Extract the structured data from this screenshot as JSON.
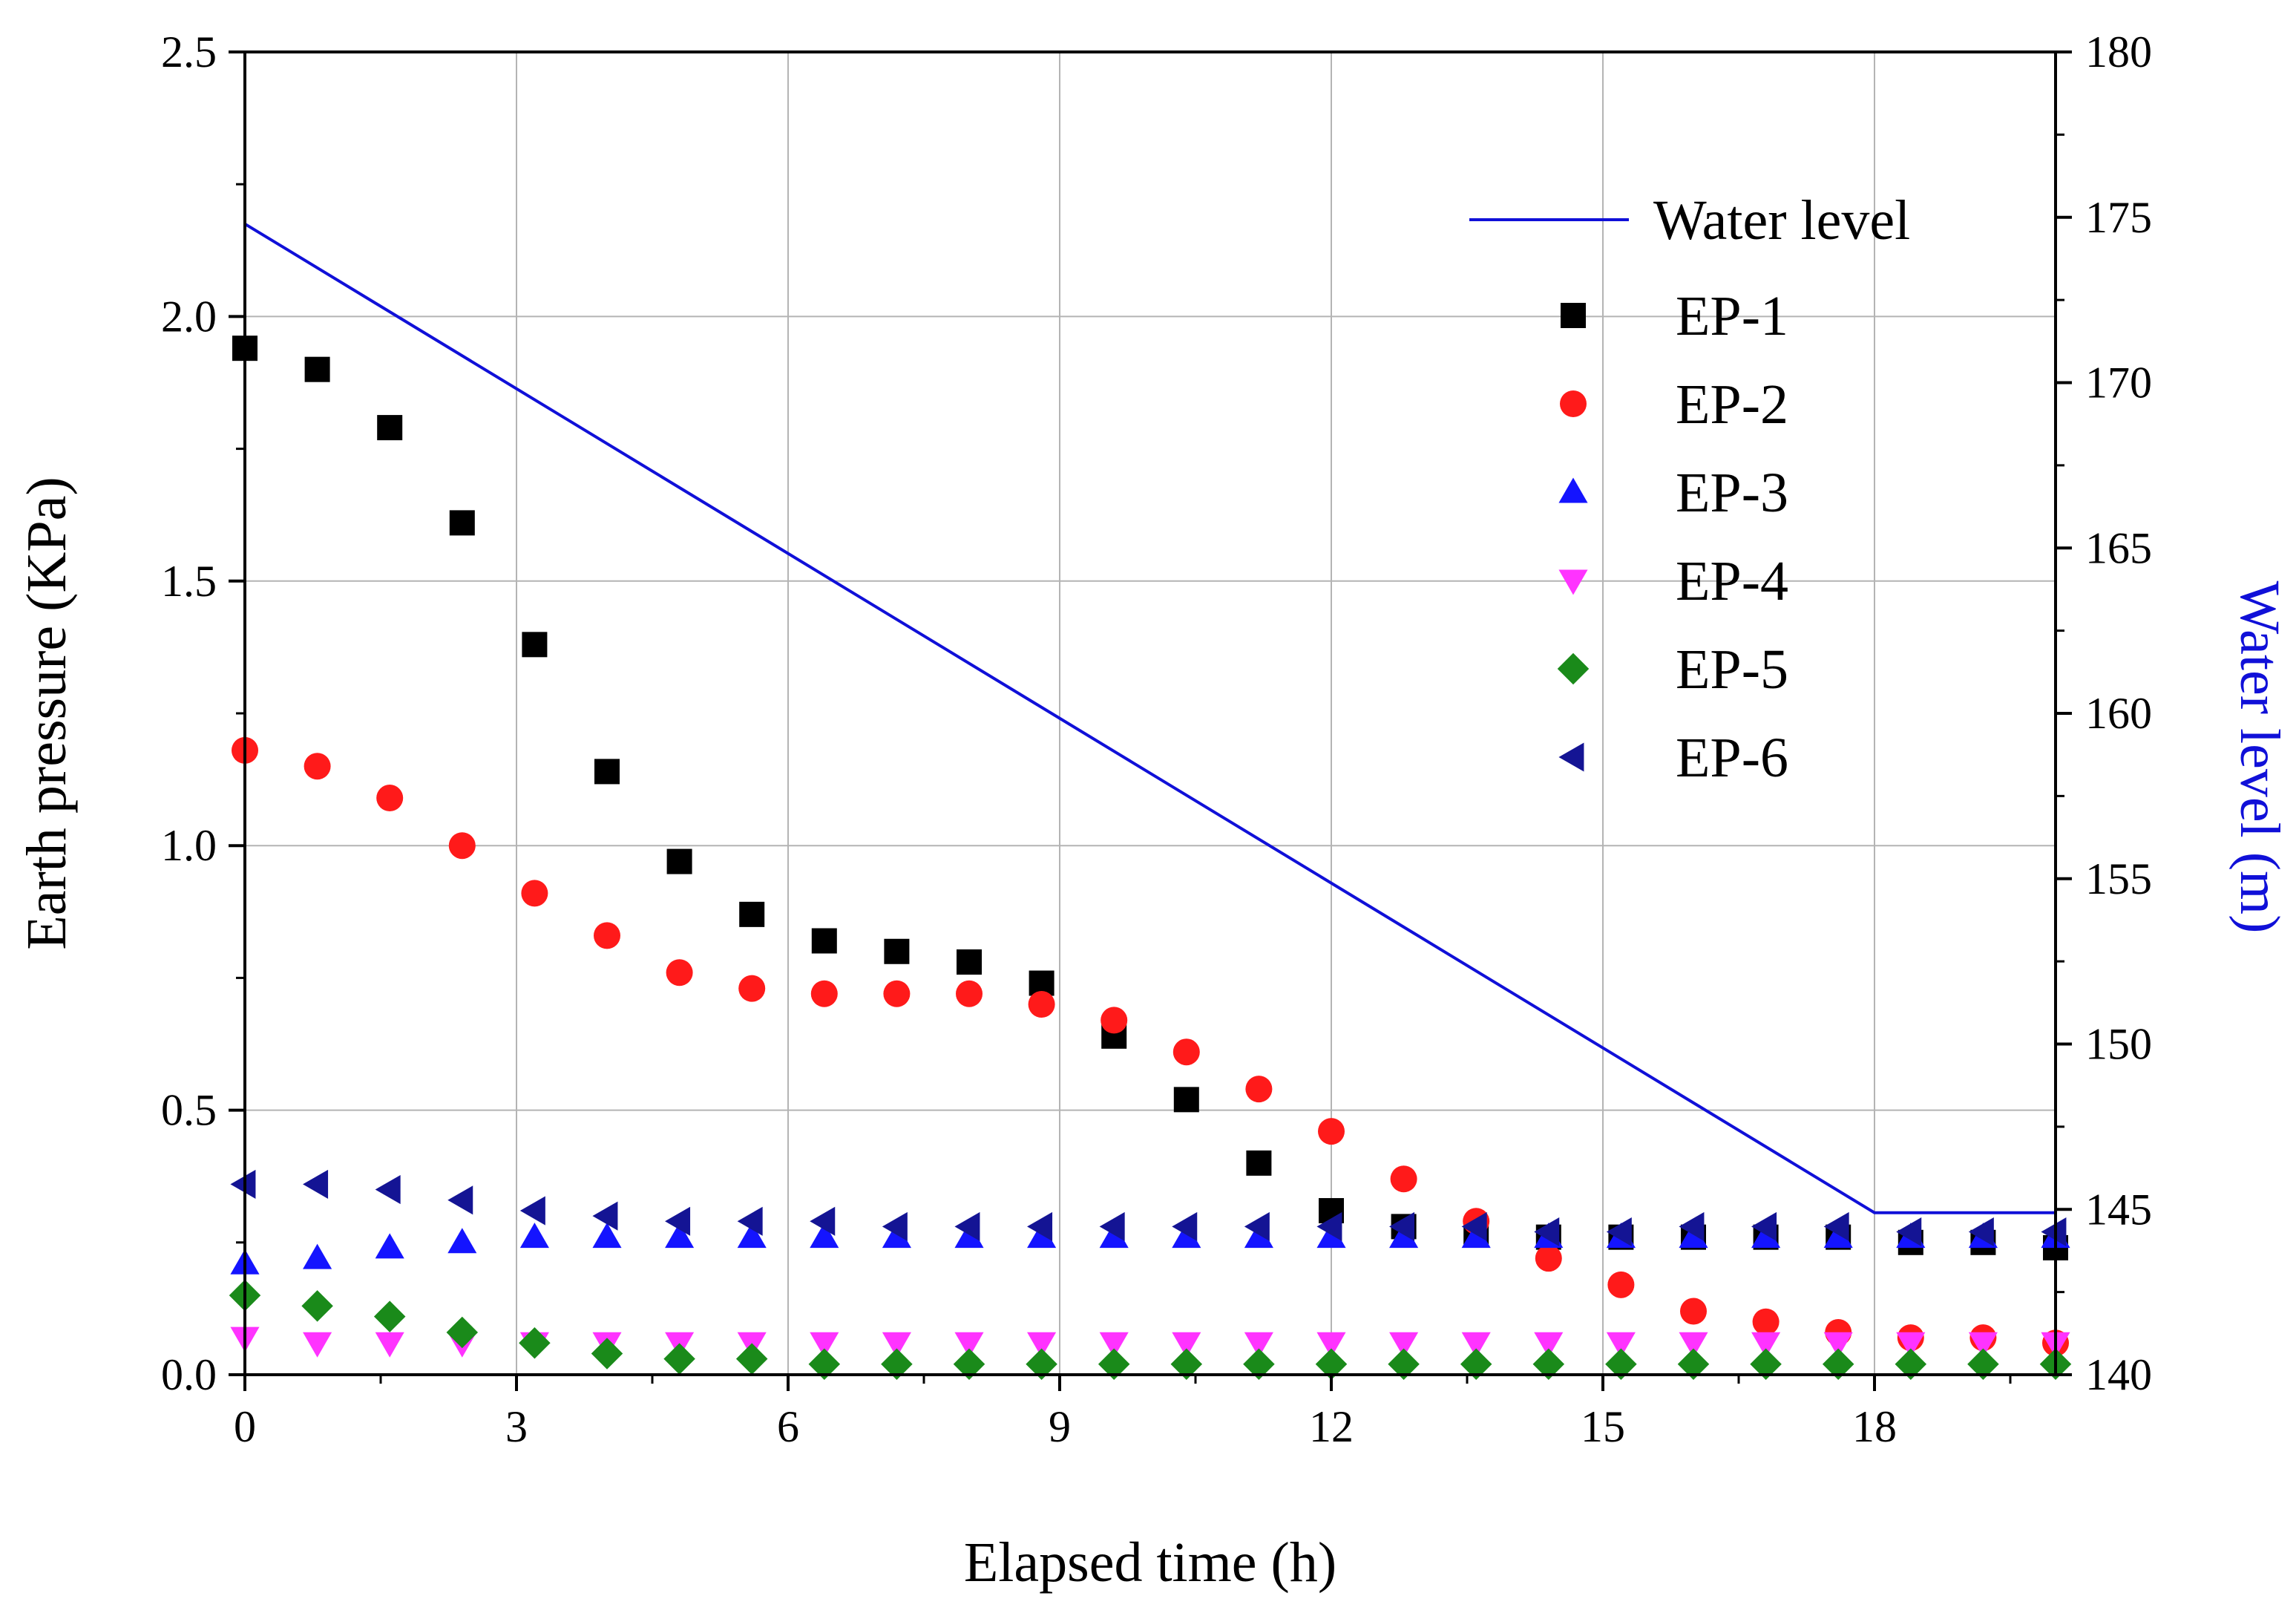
{
  "chart_data": {
    "type": "scatter",
    "xlabel": "Elapsed time (h)",
    "ylabel": "Earth pressure (KPa)",
    "y2label": "Water level (m)",
    "xlim": [
      0,
      20
    ],
    "ylim": [
      0,
      2.5
    ],
    "y2lim": [
      140,
      180
    ],
    "xticks": [
      "0",
      "3",
      "6",
      "9",
      "12",
      "15",
      "18"
    ],
    "yticks": [
      "0.0",
      "0.5",
      "1.0",
      "1.5",
      "2.0",
      "2.5"
    ],
    "y2ticks": [
      "140",
      "145",
      "150",
      "155",
      "160",
      "165",
      "170",
      "175",
      "180"
    ],
    "grid": true,
    "legend_position": "top-right",
    "x": [
      0,
      0.8,
      1.6,
      2.4,
      3.2,
      4.0,
      4.8,
      5.6,
      6.4,
      7.2,
      8.0,
      8.8,
      9.6,
      10.4,
      11.2,
      12.0,
      12.8,
      13.6,
      14.4,
      15.2,
      16.0,
      16.8,
      17.6,
      18.4,
      19.2,
      20.0
    ],
    "water_level": {
      "name": "Water level",
      "color": "#1010d8",
      "x": [
        0,
        18,
        20
      ],
      "y": [
        174.8,
        144.9,
        144.9
      ]
    },
    "series": [
      {
        "name": "EP-1",
        "marker": "square",
        "color": "#000000",
        "values": [
          1.94,
          1.9,
          1.79,
          1.61,
          1.38,
          1.14,
          0.97,
          0.87,
          0.82,
          0.8,
          0.78,
          0.74,
          0.64,
          0.52,
          0.4,
          0.31,
          0.28,
          0.27,
          0.26,
          0.26,
          0.26,
          0.26,
          0.26,
          0.25,
          0.25,
          0.24
        ]
      },
      {
        "name": "EP-2",
        "marker": "circle",
        "color": "#ff1a1a",
        "values": [
          1.18,
          1.15,
          1.09,
          1.0,
          0.91,
          0.83,
          0.76,
          0.73,
          0.72,
          0.72,
          0.72,
          0.7,
          0.67,
          0.61,
          0.54,
          0.46,
          0.37,
          0.29,
          0.22,
          0.17,
          0.12,
          0.1,
          0.08,
          0.07,
          0.07,
          0.06
        ]
      },
      {
        "name": "EP-3",
        "marker": "triangle-up",
        "color": "#1414ff",
        "values": [
          0.21,
          0.22,
          0.24,
          0.25,
          0.26,
          0.26,
          0.26,
          0.26,
          0.26,
          0.26,
          0.26,
          0.26,
          0.26,
          0.26,
          0.26,
          0.26,
          0.26,
          0.26,
          0.26,
          0.26,
          0.26,
          0.26,
          0.26,
          0.26,
          0.26,
          0.26
        ]
      },
      {
        "name": "EP-4",
        "marker": "triangle-down",
        "color": "#ff33ff",
        "values": [
          0.07,
          0.06,
          0.06,
          0.06,
          0.06,
          0.06,
          0.06,
          0.06,
          0.06,
          0.06,
          0.06,
          0.06,
          0.06,
          0.06,
          0.06,
          0.06,
          0.06,
          0.06,
          0.06,
          0.06,
          0.06,
          0.06,
          0.06,
          0.06,
          0.06,
          0.06
        ]
      },
      {
        "name": "EP-5",
        "marker": "diamond",
        "color": "#1a8a1a",
        "values": [
          0.15,
          0.13,
          0.11,
          0.08,
          0.06,
          0.04,
          0.03,
          0.03,
          0.02,
          0.02,
          0.02,
          0.02,
          0.02,
          0.02,
          0.02,
          0.02,
          0.02,
          0.02,
          0.02,
          0.02,
          0.02,
          0.02,
          0.02,
          0.02,
          0.02,
          0.02
        ]
      },
      {
        "name": "EP-6",
        "marker": "triangle-left",
        "color": "#141494",
        "values": [
          0.36,
          0.36,
          0.35,
          0.33,
          0.31,
          0.3,
          0.29,
          0.29,
          0.29,
          0.28,
          0.28,
          0.28,
          0.28,
          0.28,
          0.28,
          0.28,
          0.28,
          0.28,
          0.27,
          0.27,
          0.28,
          0.28,
          0.28,
          0.27,
          0.27,
          0.27
        ]
      }
    ]
  }
}
